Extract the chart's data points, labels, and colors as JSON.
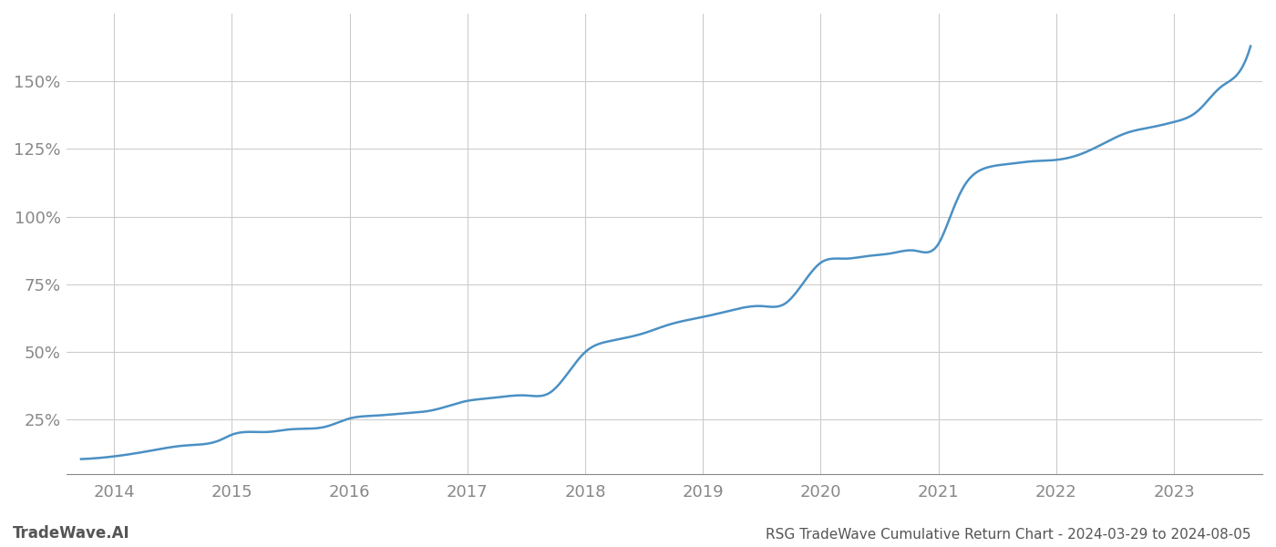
{
  "title": "RSG TradeWave Cumulative Return Chart - 2024-03-29 to 2024-08-05",
  "watermark": "TradeWave.AI",
  "line_color": "#4a90c4",
  "background_color": "#ffffff",
  "grid_color": "#cccccc",
  "tick_color": "#888888",
  "title_color": "#555555",
  "watermark_color": "#555555",
  "xlim": [
    2013.6,
    2023.75
  ],
  "ylim": [
    5,
    175
  ],
  "yticks": [
    25,
    50,
    75,
    100,
    125,
    150
  ],
  "xticks": [
    2014,
    2015,
    2016,
    2017,
    2018,
    2019,
    2020,
    2021,
    2022,
    2023
  ],
  "line_width": 1.8,
  "figsize": [
    14.0,
    6.0
  ],
  "dpi": 100
}
